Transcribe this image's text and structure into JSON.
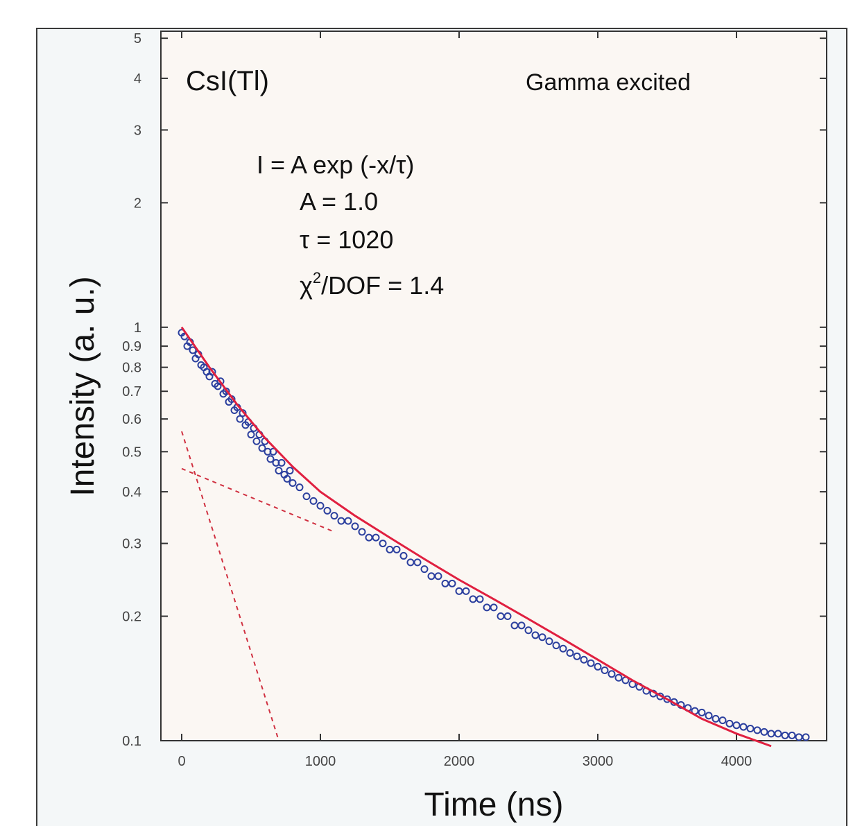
{
  "chart_data": {
    "type": "scatter",
    "title": "",
    "xlabel": "Time (ns)",
    "ylabel": "Intensity (a. u.)",
    "y_scale": "log",
    "xlim": [
      -150,
      4650
    ],
    "ylim": [
      0.1,
      5.2
    ],
    "x_ticks": [
      0,
      1000,
      2000,
      3000,
      4000
    ],
    "x_tick_labels": [
      "0",
      "1000",
      "2000",
      "3000",
      "4000"
    ],
    "y_ticks": [
      0.1,
      0.2,
      0.3,
      0.4,
      0.5,
      0.6,
      0.7,
      0.8,
      0.9,
      1,
      2,
      3,
      4,
      5
    ],
    "y_tick_labels": [
      "0.1",
      "0.2",
      "0.3",
      "0.4",
      "0.5",
      "0.6",
      "0.7",
      "0.8",
      "0.9",
      "1",
      "2",
      "3",
      "4",
      "5"
    ],
    "grid": false,
    "legend": "none",
    "annotations": {
      "material": "CsI(Tl)",
      "excitation": "Gamma excited",
      "formula": "I = A exp (-x/τ)",
      "amplitude": "A = 1.0",
      "decay_time": "τ = 1020",
      "chi2_prefix": "χ",
      "chi2_sup": "2",
      "chi2_suffix": "/DOF = 1.4"
    },
    "series": [
      {
        "type": "scatter",
        "marker": "open-circle",
        "color": "#2b3f9e",
        "points": [
          [
            0,
            0.97
          ],
          [
            20,
            0.95
          ],
          [
            40,
            0.9
          ],
          [
            60,
            0.92
          ],
          [
            80,
            0.88
          ],
          [
            100,
            0.84
          ],
          [
            120,
            0.86
          ],
          [
            140,
            0.81
          ],
          [
            160,
            0.8
          ],
          [
            180,
            0.78
          ],
          [
            200,
            0.76
          ],
          [
            220,
            0.78
          ],
          [
            240,
            0.73
          ],
          [
            260,
            0.72
          ],
          [
            280,
            0.74
          ],
          [
            300,
            0.69
          ],
          [
            320,
            0.7
          ],
          [
            340,
            0.66
          ],
          [
            360,
            0.67
          ],
          [
            380,
            0.63
          ],
          [
            400,
            0.64
          ],
          [
            420,
            0.6
          ],
          [
            440,
            0.62
          ],
          [
            460,
            0.58
          ],
          [
            480,
            0.59
          ],
          [
            500,
            0.55
          ],
          [
            520,
            0.57
          ],
          [
            540,
            0.53
          ],
          [
            560,
            0.55
          ],
          [
            580,
            0.51
          ],
          [
            600,
            0.53
          ],
          [
            620,
            0.5
          ],
          [
            640,
            0.48
          ],
          [
            660,
            0.5
          ],
          [
            680,
            0.47
          ],
          [
            700,
            0.45
          ],
          [
            720,
            0.47
          ],
          [
            740,
            0.44
          ],
          [
            760,
            0.43
          ],
          [
            780,
            0.45
          ],
          [
            800,
            0.42
          ],
          [
            850,
            0.41
          ],
          [
            900,
            0.39
          ],
          [
            950,
            0.38
          ],
          [
            1000,
            0.37
          ],
          [
            1050,
            0.36
          ],
          [
            1100,
            0.35
          ],
          [
            1150,
            0.34
          ],
          [
            1200,
            0.34
          ],
          [
            1250,
            0.33
          ],
          [
            1300,
            0.32
          ],
          [
            1350,
            0.31
          ],
          [
            1400,
            0.31
          ],
          [
            1450,
            0.3
          ],
          [
            1500,
            0.29
          ],
          [
            1550,
            0.29
          ],
          [
            1600,
            0.28
          ],
          [
            1650,
            0.27
          ],
          [
            1700,
            0.27
          ],
          [
            1750,
            0.26
          ],
          [
            1800,
            0.25
          ],
          [
            1850,
            0.25
          ],
          [
            1900,
            0.24
          ],
          [
            1950,
            0.24
          ],
          [
            2000,
            0.23
          ],
          [
            2050,
            0.23
          ],
          [
            2100,
            0.22
          ],
          [
            2150,
            0.22
          ],
          [
            2200,
            0.21
          ],
          [
            2250,
            0.21
          ],
          [
            2300,
            0.2
          ],
          [
            2350,
            0.2
          ],
          [
            2400,
            0.19
          ],
          [
            2450,
            0.19
          ],
          [
            2500,
            0.185
          ],
          [
            2550,
            0.18
          ],
          [
            2600,
            0.178
          ],
          [
            2650,
            0.174
          ],
          [
            2700,
            0.17
          ],
          [
            2750,
            0.167
          ],
          [
            2800,
            0.163
          ],
          [
            2850,
            0.16
          ],
          [
            2900,
            0.157
          ],
          [
            2950,
            0.154
          ],
          [
            3000,
            0.151
          ],
          [
            3050,
            0.148
          ],
          [
            3100,
            0.145
          ],
          [
            3150,
            0.142
          ],
          [
            3200,
            0.14
          ],
          [
            3250,
            0.137
          ],
          [
            3300,
            0.135
          ],
          [
            3350,
            0.132
          ],
          [
            3400,
            0.13
          ],
          [
            3450,
            0.128
          ],
          [
            3500,
            0.126
          ],
          [
            3550,
            0.124
          ],
          [
            3600,
            0.122
          ],
          [
            3650,
            0.12
          ],
          [
            3700,
            0.118
          ],
          [
            3750,
            0.117
          ],
          [
            3800,
            0.115
          ],
          [
            3850,
            0.113
          ],
          [
            3900,
            0.112
          ],
          [
            3950,
            0.11
          ],
          [
            4000,
            0.109
          ],
          [
            4050,
            0.108
          ],
          [
            4100,
            0.107
          ],
          [
            4150,
            0.106
          ],
          [
            4200,
            0.105
          ],
          [
            4250,
            0.104
          ],
          [
            4300,
            0.104
          ],
          [
            4350,
            0.103
          ],
          [
            4400,
            0.103
          ],
          [
            4450,
            0.102
          ],
          [
            4500,
            0.102
          ]
        ]
      },
      {
        "type": "line",
        "style": "solid",
        "color": "#e02040",
        "points": [
          [
            0,
            1.0
          ],
          [
            200,
            0.8
          ],
          [
            400,
            0.65
          ],
          [
            600,
            0.54
          ],
          [
            800,
            0.46
          ],
          [
            1000,
            0.4
          ],
          [
            1250,
            0.35
          ],
          [
            1500,
            0.31
          ],
          [
            1750,
            0.275
          ],
          [
            2000,
            0.245
          ],
          [
            2250,
            0.22
          ],
          [
            2500,
            0.197
          ],
          [
            2750,
            0.176
          ],
          [
            3000,
            0.157
          ],
          [
            3250,
            0.14
          ],
          [
            3500,
            0.126
          ],
          [
            3750,
            0.113
          ],
          [
            4000,
            0.104
          ],
          [
            4250,
            0.097
          ]
        ]
      },
      {
        "type": "line",
        "style": "dashed",
        "color": "#d03040",
        "points": [
          [
            0,
            0.56
          ],
          [
            700,
            0.1
          ]
        ]
      },
      {
        "type": "line",
        "style": "dashed",
        "color": "#d03040",
        "points": [
          [
            0,
            0.455
          ],
          [
            1100,
            0.32
          ]
        ]
      }
    ]
  }
}
